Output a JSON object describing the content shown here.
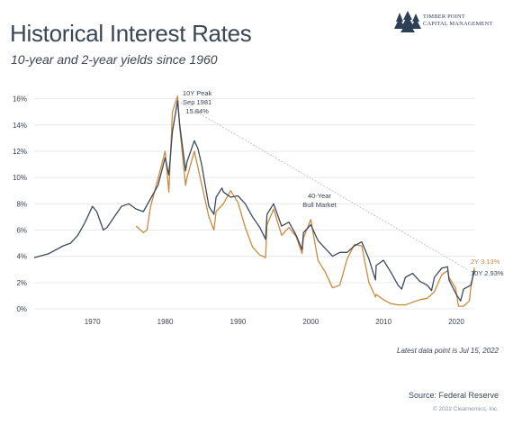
{
  "header": {
    "title": "Historical Interest Rates",
    "subtitle": "10-year and 2-year yields since 1960",
    "logo_line1": "Timber Point",
    "logo_line2": "Capital Management"
  },
  "footer": {
    "note": "Latest data point is Jul 15, 2022",
    "source": "Source: Federal Reserve",
    "copyright": "© 2022 Clearnomics, Inc."
  },
  "colors": {
    "ten_year": "#3d4a5c",
    "two_year": "#c98b40",
    "text": "#3a4556",
    "grid": "#e7e9ec"
  },
  "chart_data": {
    "type": "line",
    "ylim": [
      0,
      17
    ],
    "xlim": [
      1962,
      2022.6
    ],
    "grid": true,
    "y_ticks": [
      "0%",
      "2%",
      "4%",
      "6%",
      "8%",
      "10%",
      "12%",
      "14%",
      "16%"
    ],
    "x_ticks": [
      "1970",
      "1980",
      "1990",
      "2000",
      "2010",
      "2020"
    ],
    "annotations": {
      "peak": [
        "10Y Peak",
        "Sep 1981",
        "15.84%"
      ],
      "bull": [
        "40-Year",
        "Bull Market"
      ],
      "label_2y": "2Y 3.13%",
      "label_10y": "10Y 2.93%"
    },
    "trend": {
      "x": [
        1981.7,
        2021.5
      ],
      "y": [
        15.84,
        3.0
      ]
    },
    "series": [
      {
        "name": "10Y",
        "x": [
          1962,
          1964,
          1966,
          1967,
          1968,
          1969,
          1970,
          1970.6,
          1971.5,
          1972,
          1973,
          1974,
          1975,
          1976,
          1977,
          1978,
          1979,
          1980,
          1980.5,
          1981,
          1981.7,
          1982,
          1982.8,
          1983,
          1984,
          1984.5,
          1985,
          1986,
          1986.7,
          1987,
          1987.8,
          1988,
          1989,
          1990,
          1991,
          1992,
          1993,
          1993.8,
          1994,
          1994.9,
          1996,
          1997,
          1998,
          1998.8,
          1999,
          2000,
          2001,
          2002,
          2003,
          2004,
          2005,
          2006,
          2007,
          2008,
          2008.9,
          2009,
          2010,
          2011,
          2012,
          2012.5,
          2013,
          2014,
          2015,
          2016,
          2016.6,
          2017,
          2018,
          2018.8,
          2019,
          2020,
          2020.6,
          2021,
          2022,
          2022.5
        ],
        "y": [
          3.9,
          4.2,
          4.8,
          5.0,
          5.6,
          6.6,
          7.8,
          7.4,
          6.0,
          6.2,
          7.0,
          7.8,
          8.0,
          7.6,
          7.4,
          8.4,
          9.4,
          11.5,
          10.2,
          13.5,
          15.84,
          14.0,
          10.5,
          11.2,
          12.8,
          12.2,
          11.0,
          7.8,
          7.2,
          8.5,
          9.2,
          8.9,
          8.5,
          8.6,
          8.0,
          7.0,
          6.2,
          5.3,
          7.2,
          8.0,
          6.3,
          6.6,
          5.6,
          4.5,
          5.8,
          6.4,
          5.2,
          4.6,
          4.0,
          4.3,
          4.3,
          4.8,
          5.1,
          3.8,
          2.2,
          3.3,
          3.7,
          2.8,
          1.8,
          1.5,
          2.4,
          2.7,
          2.1,
          1.8,
          1.4,
          2.4,
          3.1,
          3.2,
          2.2,
          1.1,
          0.6,
          1.5,
          1.8,
          2.93
        ]
      },
      {
        "name": "2Y",
        "x": [
          1976,
          1977,
          1977.5,
          1978,
          1979,
          1980,
          1980.5,
          1981,
          1981.7,
          1982,
          1982.8,
          1983,
          1984,
          1985,
          1986,
          1986.7,
          1987,
          1988,
          1989,
          1990,
          1991,
          1992,
          1993,
          1993.8,
          1994,
          1994.9,
          1996,
          1997,
          1998,
          1998.8,
          1999,
          2000,
          2001,
          2002,
          2003,
          2004,
          2005,
          2006,
          2007,
          2008,
          2008.9,
          2009,
          2010,
          2011,
          2012,
          2013,
          2014,
          2015,
          2016,
          2017,
          2018,
          2018.8,
          2019,
          2019.9,
          2020.3,
          2021,
          2021.8,
          2022,
          2022.5
        ],
        "y": [
          6.3,
          5.8,
          6.0,
          7.8,
          9.9,
          12.0,
          8.9,
          15.0,
          16.2,
          13.8,
          9.4,
          10.0,
          12.0,
          9.5,
          7.0,
          6.0,
          7.4,
          8.0,
          9.0,
          8.1,
          6.2,
          4.7,
          4.1,
          3.9,
          6.4,
          7.6,
          5.6,
          6.2,
          5.5,
          4.2,
          5.4,
          6.8,
          3.7,
          2.8,
          1.6,
          1.8,
          3.8,
          4.9,
          4.8,
          2.0,
          0.9,
          1.1,
          0.7,
          0.4,
          0.3,
          0.3,
          0.5,
          0.7,
          0.8,
          1.3,
          2.6,
          2.9,
          2.4,
          1.6,
          0.2,
          0.2,
          0.6,
          1.6,
          3.13
        ]
      }
    ]
  }
}
